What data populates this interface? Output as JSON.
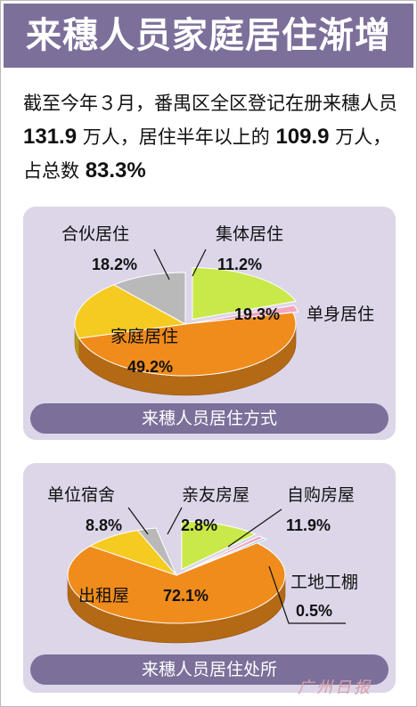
{
  "title": "来穗人员家庭居住渐增",
  "intro": {
    "p1": "截至今年３月，番禺区全区登记在册来穗人员",
    "n1": "131.9",
    "p2": "万人，居住半年以上的",
    "n2": "109.9",
    "p3": "万人，占总数",
    "n3": "83.3%"
  },
  "chart_data": [
    {
      "type": "pie",
      "title": "来穗人员居住方式",
      "categories": [
        "单身居住",
        "家庭居住",
        "合伙居住",
        "集体居住"
      ],
      "values": [
        19.3,
        49.2,
        18.2,
        11.2
      ],
      "value_labels": [
        "19.3%",
        "49.2%",
        "18.2%",
        "11.2%"
      ],
      "colors": [
        "#c9e84a",
        "#f08c1c",
        "#f5cb22",
        "#b9b9b9"
      ],
      "note": "剩余约2.1%为未标注的粉色扇区"
    },
    {
      "type": "pie",
      "title": "来穗人员居住处所",
      "categories": [
        "出租屋",
        "单位宿舍",
        "亲友房屋",
        "自购房屋",
        "工地工棚"
      ],
      "values": [
        72.1,
        8.8,
        2.8,
        11.9,
        0.5
      ],
      "value_labels": [
        "72.1%",
        "8.8%",
        "2.8%",
        "11.9%",
        "0.5%"
      ],
      "colors": [
        "#f08c1c",
        "#f5cb22",
        "#b9b9b9",
        "#c9e84a",
        "#7fc7e8"
      ]
    }
  ],
  "watermark": "广州日报",
  "colors": {
    "title_bg": "#7c6f9a",
    "panel_bg": "#ddd6e9",
    "pink": "#f2a8c0"
  }
}
